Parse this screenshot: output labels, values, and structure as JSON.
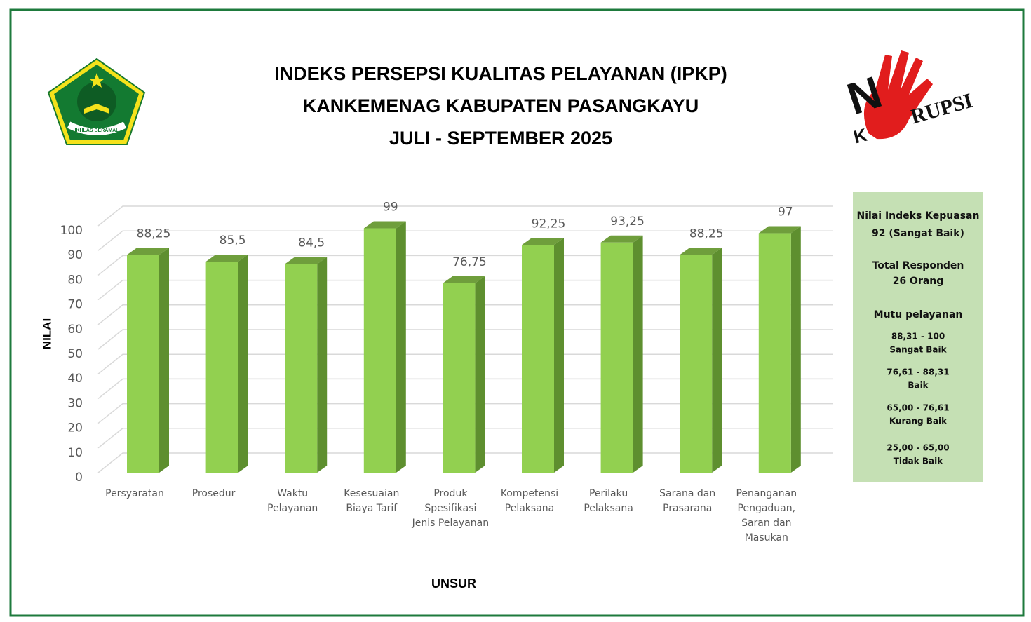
{
  "chart_data": {
    "type": "bar3d",
    "title": [
      "INDEKS PERSEPSI KUALITAS PELAYANAN (IPKP)",
      "KANKEMENAG KABUPATEN PASANGKAYU",
      "JULI - SEPTEMBER 2025"
    ],
    "categories": [
      "Persyaratan",
      "Prosedur",
      "Waktu Pelayanan",
      "Kesesuaian Biaya Tarif",
      "Produk Spesifikasi Jenis Pelayanan",
      "Kompetensi Pelaksana",
      "Perilaku Pelaksana",
      "Sarana dan Prasarana",
      "Penanganan Pengaduan, Saran dan Masukan"
    ],
    "values": [
      88.25,
      85.5,
      84.5,
      99,
      76.75,
      92.25,
      93.25,
      88.25,
      97
    ],
    "value_labels": [
      "88,25",
      "85,5",
      "84,5",
      "99",
      "76,75",
      "92,25",
      "93,25",
      "88,25",
      "97"
    ],
    "color": "#92d050",
    "ylim": [
      0,
      100
    ],
    "yticks": [
      0,
      10,
      20,
      30,
      40,
      50,
      60,
      70,
      80,
      90,
      100
    ],
    "grid": true,
    "ylabel": "NILAI",
    "xlabel": "UNSUR"
  },
  "panel": {
    "index_label": "Nilai Indeks Kepuasan",
    "index_value": "92 (Sangat Baik)",
    "respondents_label": "Total Responden",
    "respondents_value": "26 Orang",
    "quality_label": "Mutu pelayanan",
    "ranges": [
      {
        "range": "88,31 - 100",
        "grade": "Sangat Baik"
      },
      {
        "range": "76,61 - 88,31",
        "grade": "Baik"
      },
      {
        "range": "65,00 - 76,61",
        "grade": "Kurang Baik"
      },
      {
        "range": "25,00 - 65,00",
        "grade": "Tidak Baik"
      }
    ]
  },
  "logos": {
    "left": "IKHLAS BERAMAL",
    "right": [
      "N",
      "K",
      "RUPSI"
    ]
  }
}
